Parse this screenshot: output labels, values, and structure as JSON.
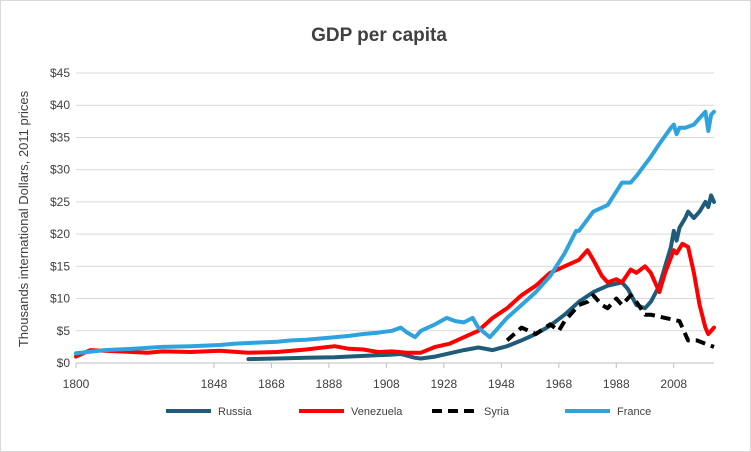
{
  "chart_data": {
    "type": "line",
    "title": "GDP per capita",
    "xlabel": "",
    "ylabel": "Thousands international Dollars, 2011 prices",
    "xlim": [
      1800,
      2022
    ],
    "ylim": [
      0,
      45
    ],
    "x_ticks": [
      1800,
      1848,
      1868,
      1888,
      1908,
      1928,
      1948,
      1968,
      1988,
      2008
    ],
    "y_ticks": [
      0,
      5,
      10,
      15,
      20,
      25,
      30,
      35,
      40,
      45
    ],
    "y_tick_labels": [
      "$0",
      "$5",
      "$10",
      "$15",
      "$20",
      "$25",
      "$30",
      "$35",
      "$40",
      "$45"
    ],
    "legend_position": "bottom",
    "series": [
      {
        "name": "Russia",
        "color": "#1f5c7a",
        "dash": "solid",
        "points": [
          [
            1860,
            0.6
          ],
          [
            1870,
            0.7
          ],
          [
            1880,
            0.8
          ],
          [
            1890,
            0.9
          ],
          [
            1900,
            1.1
          ],
          [
            1910,
            1.3
          ],
          [
            1913,
            1.4
          ],
          [
            1918,
            0.8
          ],
          [
            1920,
            0.7
          ],
          [
            1925,
            1.0
          ],
          [
            1930,
            1.5
          ],
          [
            1935,
            2.0
          ],
          [
            1940,
            2.4
          ],
          [
            1945,
            2.0
          ],
          [
            1950,
            2.6
          ],
          [
            1955,
            3.5
          ],
          [
            1960,
            4.5
          ],
          [
            1965,
            5.8
          ],
          [
            1970,
            7.5
          ],
          [
            1975,
            9.5
          ],
          [
            1980,
            11.0
          ],
          [
            1985,
            12.0
          ],
          [
            1990,
            12.5
          ],
          [
            1992,
            11.5
          ],
          [
            1995,
            9.0
          ],
          [
            1998,
            8.5
          ],
          [
            2000,
            9.5
          ],
          [
            2003,
            12.0
          ],
          [
            2005,
            15.0
          ],
          [
            2007,
            18.0
          ],
          [
            2008,
            20.5
          ],
          [
            2009,
            19.0
          ],
          [
            2010,
            21.0
          ],
          [
            2012,
            22.5
          ],
          [
            2013,
            23.5
          ],
          [
            2015,
            22.5
          ],
          [
            2017,
            23.5
          ],
          [
            2019,
            25.0
          ],
          [
            2020,
            24.2
          ],
          [
            2021,
            26.0
          ],
          [
            2022,
            25.0
          ]
        ]
      },
      {
        "name": "Venezuela",
        "color": "#ff0000",
        "dash": "solid",
        "points": [
          [
            1800,
            1.0
          ],
          [
            1805,
            2.0
          ],
          [
            1815,
            1.8
          ],
          [
            1825,
            1.6
          ],
          [
            1830,
            1.8
          ],
          [
            1840,
            1.7
          ],
          [
            1850,
            1.9
          ],
          [
            1860,
            1.6
          ],
          [
            1870,
            1.7
          ],
          [
            1880,
            2.1
          ],
          [
            1890,
            2.6
          ],
          [
            1895,
            2.2
          ],
          [
            1900,
            2.1
          ],
          [
            1905,
            1.7
          ],
          [
            1910,
            1.8
          ],
          [
            1915,
            1.6
          ],
          [
            1920,
            1.6
          ],
          [
            1925,
            2.5
          ],
          [
            1930,
            3.0
          ],
          [
            1935,
            4.0
          ],
          [
            1940,
            5.0
          ],
          [
            1945,
            7.0
          ],
          [
            1950,
            8.5
          ],
          [
            1955,
            10.5
          ],
          [
            1960,
            12.0
          ],
          [
            1965,
            14.0
          ],
          [
            1970,
            15.0
          ],
          [
            1975,
            16.0
          ],
          [
            1978,
            17.5
          ],
          [
            1980,
            16.0
          ],
          [
            1983,
            13.5
          ],
          [
            1985,
            12.5
          ],
          [
            1988,
            13.0
          ],
          [
            1990,
            12.5
          ],
          [
            1993,
            14.5
          ],
          [
            1995,
            14.0
          ],
          [
            1998,
            15.0
          ],
          [
            2000,
            14.0
          ],
          [
            2002,
            12.0
          ],
          [
            2003,
            11.0
          ],
          [
            2005,
            14.0
          ],
          [
            2008,
            17.5
          ],
          [
            2009,
            17.0
          ],
          [
            2011,
            18.5
          ],
          [
            2013,
            18.0
          ],
          [
            2015,
            14.0
          ],
          [
            2017,
            9.0
          ],
          [
            2019,
            5.5
          ],
          [
            2020,
            4.5
          ],
          [
            2022,
            5.5
          ]
        ]
      },
      {
        "name": "Syria",
        "color": "#000000",
        "dash": "dashed",
        "points": [
          [
            1950,
            3.5
          ],
          [
            1955,
            5.5
          ],
          [
            1960,
            4.5
          ],
          [
            1965,
            6.0
          ],
          [
            1968,
            5.0
          ],
          [
            1970,
            6.5
          ],
          [
            1975,
            9.0
          ],
          [
            1978,
            9.5
          ],
          [
            1980,
            10.5
          ],
          [
            1983,
            9.0
          ],
          [
            1985,
            8.5
          ],
          [
            1988,
            10.0
          ],
          [
            1990,
            9.0
          ],
          [
            1993,
            10.5
          ],
          [
            1995,
            9.5
          ],
          [
            1998,
            7.5
          ],
          [
            2000,
            7.5
          ],
          [
            2005,
            7.0
          ],
          [
            2010,
            6.5
          ],
          [
            2011,
            5.5
          ],
          [
            2013,
            3.5
          ],
          [
            2016,
            3.5
          ],
          [
            2019,
            3.0
          ],
          [
            2022,
            2.5
          ]
        ]
      },
      {
        "name": "France",
        "color": "#2ea3dd",
        "dash": "solid",
        "points": [
          [
            1800,
            1.5
          ],
          [
            1810,
            2.0
          ],
          [
            1820,
            2.2
          ],
          [
            1830,
            2.5
          ],
          [
            1840,
            2.6
          ],
          [
            1850,
            2.8
          ],
          [
            1855,
            3.0
          ],
          [
            1860,
            3.1
          ],
          [
            1865,
            3.2
          ],
          [
            1870,
            3.3
          ],
          [
            1875,
            3.5
          ],
          [
            1880,
            3.6
          ],
          [
            1885,
            3.8
          ],
          [
            1890,
            4.0
          ],
          [
            1895,
            4.2
          ],
          [
            1900,
            4.5
          ],
          [
            1905,
            4.7
          ],
          [
            1910,
            5.0
          ],
          [
            1913,
            5.5
          ],
          [
            1915,
            4.8
          ],
          [
            1918,
            4.0
          ],
          [
            1920,
            5.0
          ],
          [
            1925,
            6.0
          ],
          [
            1929,
            7.0
          ],
          [
            1932,
            6.5
          ],
          [
            1935,
            6.3
          ],
          [
            1938,
            7.0
          ],
          [
            1940,
            5.5
          ],
          [
            1944,
            4.0
          ],
          [
            1946,
            5.0
          ],
          [
            1948,
            6.0
          ],
          [
            1950,
            7.0
          ],
          [
            1955,
            9.0
          ],
          [
            1960,
            11.0
          ],
          [
            1965,
            13.5
          ],
          [
            1970,
            17.0
          ],
          [
            1974,
            20.5
          ],
          [
            1975,
            20.5
          ],
          [
            1980,
            23.5
          ],
          [
            1985,
            24.5
          ],
          [
            1990,
            28.0
          ],
          [
            1993,
            28.0
          ],
          [
            1995,
            29.0
          ],
          [
            2000,
            32.0
          ],
          [
            2003,
            34.0
          ],
          [
            2007,
            36.5
          ],
          [
            2008,
            37.0
          ],
          [
            2009,
            35.5
          ],
          [
            2010,
            36.5
          ],
          [
            2012,
            36.5
          ],
          [
            2015,
            37.0
          ],
          [
            2017,
            38.0
          ],
          [
            2019,
            39.0
          ],
          [
            2020,
            36.0
          ],
          [
            2021,
            38.5
          ],
          [
            2022,
            39.0
          ]
        ]
      }
    ]
  }
}
